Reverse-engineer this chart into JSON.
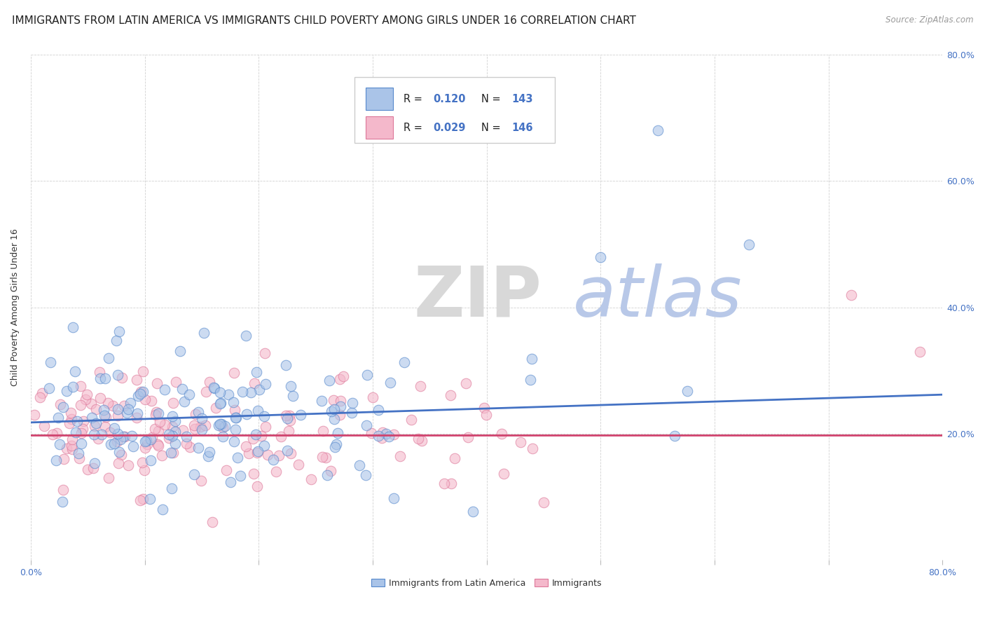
{
  "title": "IMMIGRANTS FROM LATIN AMERICA VS IMMIGRANTS CHILD POVERTY AMONG GIRLS UNDER 16 CORRELATION CHART",
  "source": "Source: ZipAtlas.com",
  "xlabel": "",
  "ylabel": "Child Poverty Among Girls Under 16",
  "xlim": [
    0,
    0.8
  ],
  "ylim": [
    0,
    0.8
  ],
  "xtick_positions": [
    0.0,
    0.1,
    0.2,
    0.3,
    0.4,
    0.5,
    0.6,
    0.7,
    0.8
  ],
  "xticklabels": [
    "0.0%",
    "",
    "",
    "",
    "",
    "",
    "",
    "",
    "80.0%"
  ],
  "ytick_positions": [
    0.2,
    0.4,
    0.6,
    0.8
  ],
  "ytick_labels": [
    "20.0%",
    "40.0%",
    "60.0%",
    "80.0%"
  ],
  "series1_color": "#aac4e8",
  "series1_edge_color": "#5588cc",
  "series1_line_color": "#4472c4",
  "series2_color": "#f4b8cb",
  "series2_edge_color": "#dd7799",
  "series2_line_color": "#d0436e",
  "series1_label": "Immigrants from Latin America",
  "series2_label": "Immigrants",
  "legend_R1_val": "0.120",
  "legend_N1_val": "143",
  "legend_R2_val": "0.029",
  "legend_N2_val": "146",
  "watermark_ZIP": "ZIP",
  "watermark_atlas": "atlas",
  "watermark_ZIP_color": "#d8d8d8",
  "watermark_atlas_color": "#b8c8e8",
  "background_color": "#ffffff",
  "grid_color": "#cccccc",
  "title_fontsize": 11,
  "axis_fontsize": 9,
  "tick_color": "#4472c4",
  "legend_num_color": "#4472c4",
  "legend_text_color": "#222222",
  "seed1": 42,
  "seed2": 123,
  "N1": 143,
  "N2": 146,
  "R1": 0.12,
  "R2": 0.029,
  "series1_trend_y0": 0.218,
  "series1_trend_y1": 0.262,
  "series2_trend_y0": 0.198,
  "series2_trend_y1": 0.198
}
